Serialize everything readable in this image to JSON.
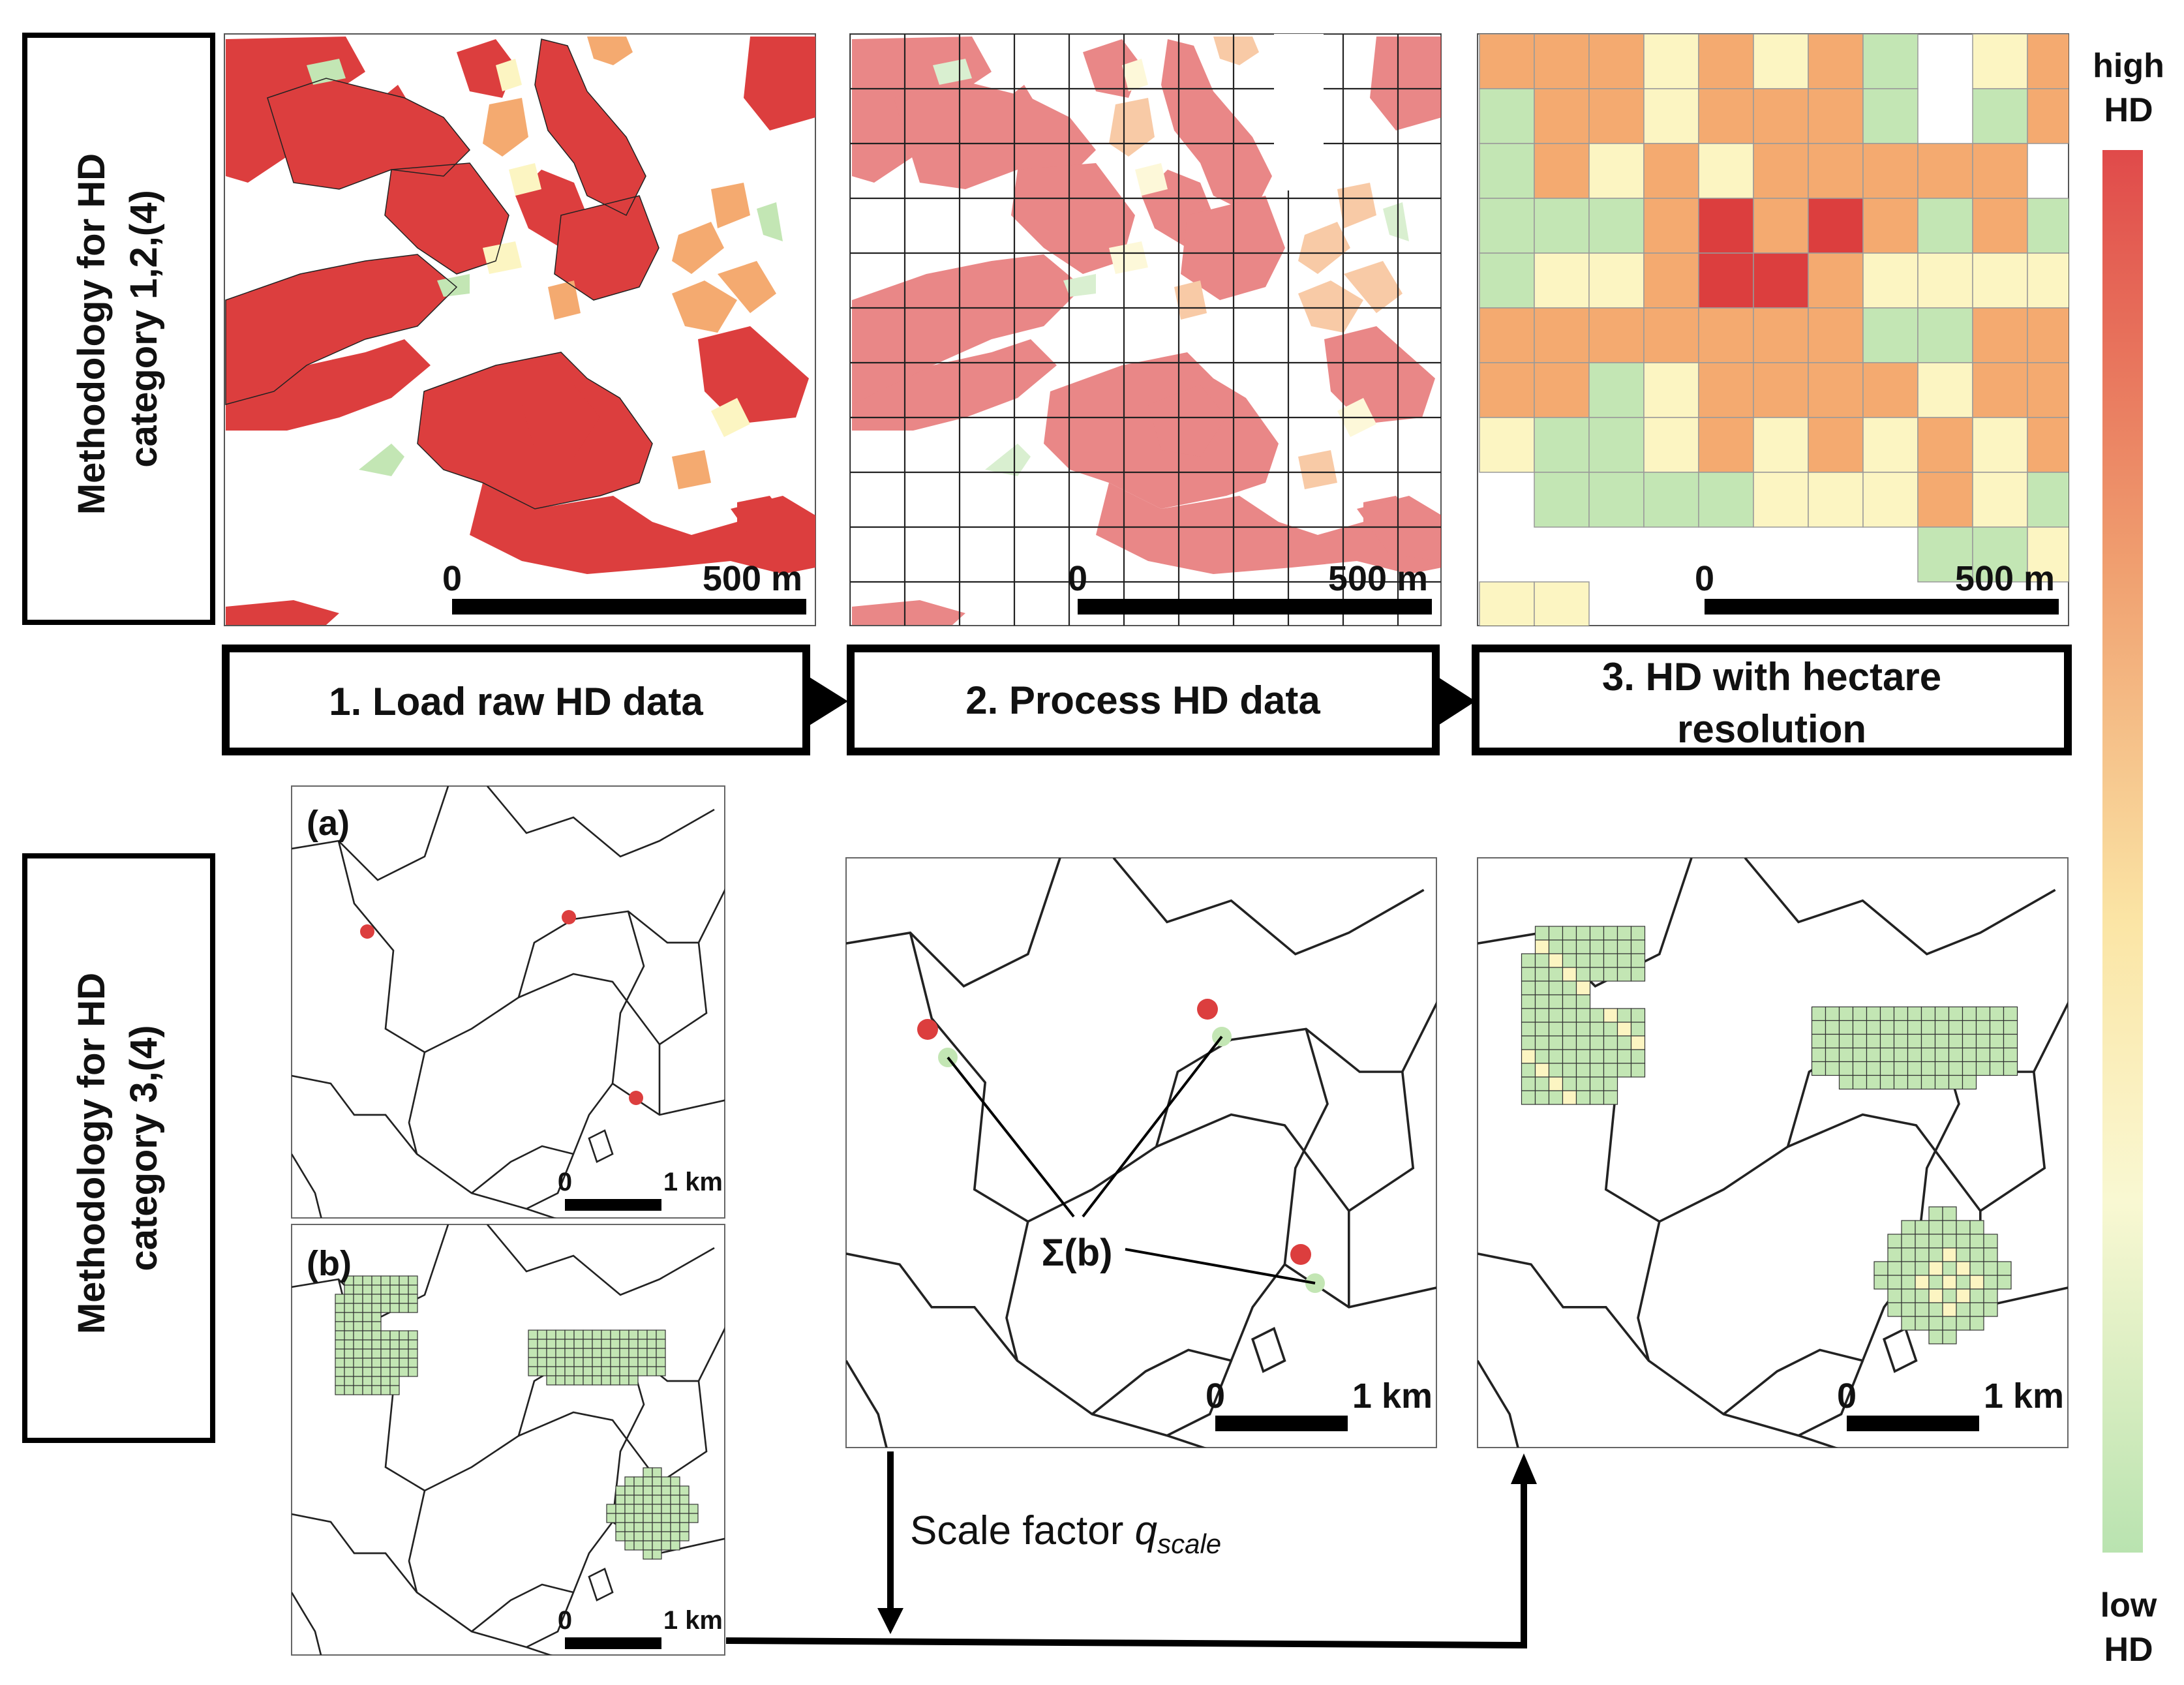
{
  "row_labels": {
    "top": {
      "line1": "Methodology for HD",
      "line2": "category 1,2,(4)"
    },
    "bottom": {
      "line1": "Methodology for HD",
      "line2": "category 3,(4)"
    }
  },
  "steps": [
    {
      "label": "1. Load raw HD data"
    },
    {
      "label_line1": "2. Process HD data"
    },
    {
      "label_line1": "3. HD with hectare",
      "label_line2": "resolution"
    }
  ],
  "scalebars": {
    "top_zero": "0",
    "top_end": "500 m",
    "bottom_zero": "0",
    "bottom_end": "1 km"
  },
  "panel_letters": {
    "a": "(a)",
    "b": "(b)"
  },
  "sum_label": "Σ(b)",
  "scale_factor": {
    "text": "Scale factor ",
    "symbol": "q",
    "subscript": "scale"
  },
  "colorbar": {
    "high_line1": "high",
    "high_line2": "HD",
    "low_line1": "low",
    "low_line2": "HD",
    "colors": [
      "#e04a4a",
      "#f0a070",
      "#fbe5a5",
      "#f9f8d2",
      "#b9e3b0"
    ]
  },
  "colors": {
    "red": "#dc3e3e",
    "orange": "#f4aa70",
    "yellow": "#fcf5c2",
    "green": "#c3e6b4",
    "line": "#222222"
  }
}
